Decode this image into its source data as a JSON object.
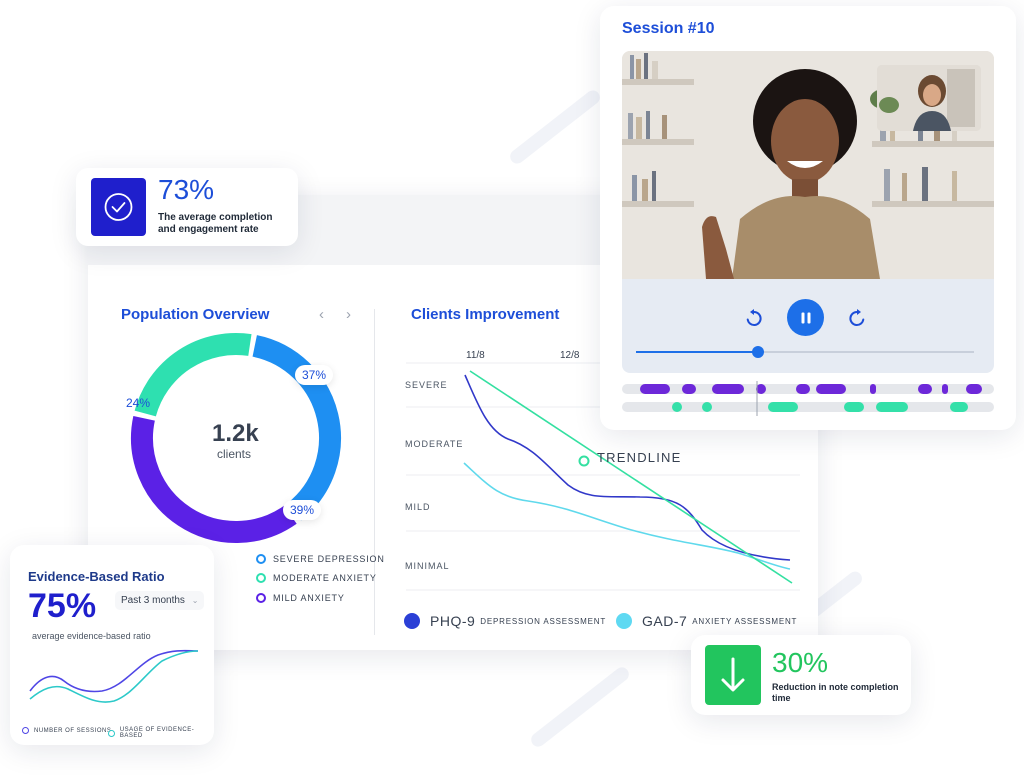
{
  "stat_completion": {
    "value": "73%",
    "desc_line1": "The average completion",
    "desc_line2": "and engagement rate",
    "icon": "check-circle-icon"
  },
  "population": {
    "title": "Population Overview",
    "prev_icon": "chevron-left-icon",
    "next_icon": "chevron-right-icon",
    "center_value": "1.2k",
    "center_label": "clients",
    "slices": [
      {
        "name": "SEVERE DEPRESSION",
        "value": 37,
        "label": "37%",
        "color": "#1e8ff2"
      },
      {
        "name": "MILD ANXIETY",
        "value": 39,
        "label": "39%",
        "color": "#5b21e6"
      },
      {
        "name": "MODERATE ANXIETY",
        "value": 24,
        "label": "24%",
        "color": "#2ee0b0"
      }
    ],
    "legend": [
      {
        "label": "SEVERE DEPRESSION",
        "color": "#1e8ff2"
      },
      {
        "label": "MODERATE ANXIETY",
        "color": "#2ee0b0"
      },
      {
        "label": "MILD ANXIETY",
        "color": "#5b21e6"
      }
    ]
  },
  "improvement": {
    "title": "Clients Improvement",
    "dates": [
      "11/8",
      "12/8"
    ],
    "levels": [
      "SEVERE",
      "MODERATE",
      "MILD",
      "MINIMAL"
    ],
    "trendline_label": "TRENDLINE",
    "legend": [
      {
        "main": "PHQ-9",
        "sub": "DEPRESSION ASSESSMENT",
        "color": "#2b3fd6"
      },
      {
        "main": "GAD-7",
        "sub": "ANXIETY ASSESSMENT",
        "color": "#5fd9f2"
      }
    ],
    "colors": {
      "phq": "#3138c9",
      "gad": "#5fd9ec",
      "trend": "#34e0a1"
    }
  },
  "session": {
    "title": "Session #10",
    "progress": 0.36,
    "icons": {
      "rewind": "rewind-icon",
      "pause": "pause-icon",
      "forward": "forward-icon"
    },
    "timeline_colors": {
      "speaker_a": "#6d28d9",
      "speaker_b": "#34e0a9",
      "track": "#e5e7eb"
    }
  },
  "evidence": {
    "title": "Evidence-Based Ratio",
    "value": "75%",
    "period": "Past 3 months",
    "desc": "average evidence-based ratio",
    "legend": [
      {
        "label": "NUMBER OF SESSIONS",
        "color": "#4f46e5"
      },
      {
        "label": "USAGE OF EVIDENCE-BASED",
        "color": "#2cc9c9"
      }
    ]
  },
  "stat_reduction": {
    "value": "30%",
    "desc_line1": "Reduction in note completion",
    "desc_line2": "time",
    "icon": "arrow-down-icon"
  },
  "colors": {
    "brand_blue": "#1d4ed8",
    "green": "#22c55e",
    "indigo": "#1f1fcc"
  }
}
